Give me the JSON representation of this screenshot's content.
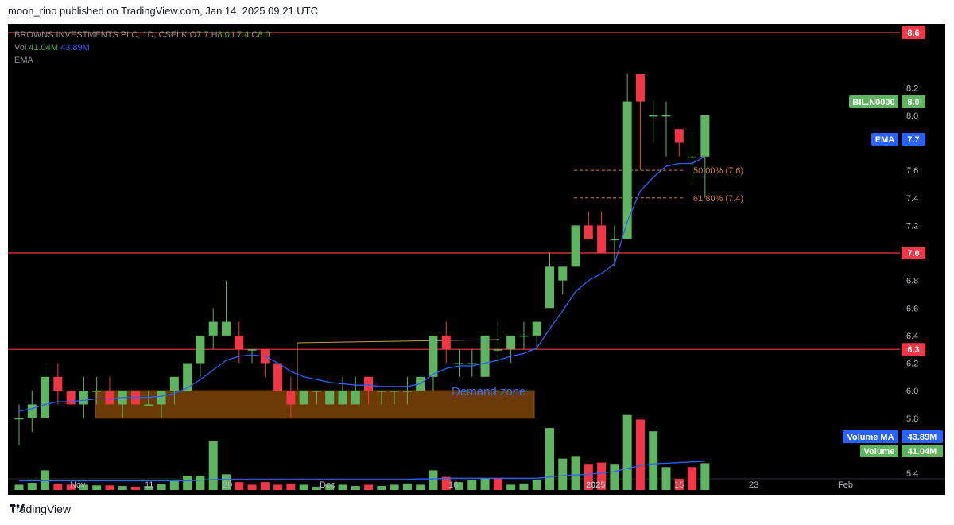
{
  "header": {
    "text": "moon_rino published on TradingView.com, Jan 14, 2025 09:21 UTC"
  },
  "footer": {
    "brand": "TradingView"
  },
  "legend": {
    "symbol": "BROWNS INVESTMENTS PLC, 1D, CSELK",
    "o_label": "O",
    "o": "7.7",
    "h_label": "H",
    "h": "8.0",
    "l_label": "L",
    "l": "7.4",
    "c_label": "C",
    "c": "8.0",
    "vol_label": "Vol",
    "vol": "41.04M",
    "vol_ma": "43.89M",
    "ema_label": "EMA"
  },
  "colors": {
    "up": "#5fb45f",
    "down": "#f23645",
    "ema": "#2962ff",
    "hline": "#f23645",
    "fib": "#d17b2f",
    "zone": "#6b3a05",
    "zone_text": "#3a6df0",
    "bg": "#000000"
  },
  "annotations": {
    "demand_zone": "Demand zone",
    "fib50": "50.00% (7.6)",
    "fib618": "61.80% (7.4)"
  },
  "badges": {
    "r86": "8.6",
    "r70": "7.0",
    "r63": "6.3",
    "symbol_name": "BIL.N0000",
    "symbol_price": "8.0",
    "ema_name": "EMA",
    "ema_val": "7.7",
    "vma_name": "Volume MA",
    "vma_val": "43.89M",
    "vol_name": "Volume",
    "vol_val": "41.04M"
  },
  "chart_data": {
    "type": "candlestick",
    "ylim": [
      5.4,
      8.6
    ],
    "y_ticks": [
      "8.2",
      "8.0",
      "7.8",
      "7.6",
      "7.4",
      "7.2",
      "7.0",
      "6.8",
      "6.6",
      "6.4",
      "6.2",
      "6.0",
      "5.8",
      "5.4"
    ],
    "x_ticks": [
      "Nov",
      "11",
      "20",
      "Dec",
      "16",
      "2025",
      "15",
      "23",
      "Feb"
    ],
    "horizontal_lines": [
      8.6,
      7.0,
      6.3
    ],
    "fib_levels": [
      {
        "label": "50.00% (7.6)",
        "value": 7.6
      },
      {
        "label": "61.80% (7.4)",
        "value": 7.4
      }
    ],
    "demand_zone": {
      "low": 5.8,
      "high": 6.0
    },
    "candles": [
      {
        "o": 5.8,
        "h": 5.9,
        "l": 5.6,
        "c": 5.8
      },
      {
        "o": 5.8,
        "h": 6.0,
        "l": 5.7,
        "c": 5.9
      },
      {
        "o": 5.8,
        "h": 6.2,
        "l": 5.8,
        "c": 6.1
      },
      {
        "o": 6.1,
        "h": 6.2,
        "l": 5.9,
        "c": 6.0
      },
      {
        "o": 6.0,
        "h": 6.0,
        "l": 5.9,
        "c": 5.9
      },
      {
        "o": 5.9,
        "h": 6.1,
        "l": 5.8,
        "c": 6.0
      },
      {
        "o": 6.0,
        "h": 6.1,
        "l": 5.9,
        "c": 6.0
      },
      {
        "o": 6.0,
        "h": 6.1,
        "l": 5.9,
        "c": 5.9
      },
      {
        "o": 5.9,
        "h": 6.0,
        "l": 5.8,
        "c": 6.0
      },
      {
        "o": 6.0,
        "h": 6.0,
        "l": 5.9,
        "c": 5.9
      },
      {
        "o": 5.9,
        "h": 6.0,
        "l": 5.9,
        "c": 5.9
      },
      {
        "o": 5.9,
        "h": 6.0,
        "l": 5.8,
        "c": 6.0
      },
      {
        "o": 6.0,
        "h": 6.1,
        "l": 5.9,
        "c": 6.1
      },
      {
        "o": 6.0,
        "h": 6.2,
        "l": 6.0,
        "c": 6.2
      },
      {
        "o": 6.2,
        "h": 6.4,
        "l": 6.1,
        "c": 6.4
      },
      {
        "o": 6.4,
        "h": 6.6,
        "l": 6.3,
        "c": 6.5
      },
      {
        "o": 6.4,
        "h": 6.8,
        "l": 6.4,
        "c": 6.5
      },
      {
        "o": 6.4,
        "h": 6.5,
        "l": 6.2,
        "c": 6.3
      },
      {
        "o": 6.3,
        "h": 6.3,
        "l": 6.2,
        "c": 6.3
      },
      {
        "o": 6.3,
        "h": 6.3,
        "l": 6.1,
        "c": 6.2
      },
      {
        "o": 6.2,
        "h": 6.2,
        "l": 6.0,
        "c": 6.0
      },
      {
        "o": 6.0,
        "h": 6.1,
        "l": 5.8,
        "c": 5.9
      },
      {
        "o": 5.9,
        "h": 6.0,
        "l": 5.9,
        "c": 6.0
      },
      {
        "o": 6.0,
        "h": 6.0,
        "l": 5.9,
        "c": 6.0
      },
      {
        "o": 5.9,
        "h": 6.0,
        "l": 5.9,
        "c": 6.0
      },
      {
        "o": 5.9,
        "h": 6.1,
        "l": 5.9,
        "c": 6.0
      },
      {
        "o": 5.9,
        "h": 6.1,
        "l": 5.9,
        "c": 6.0
      },
      {
        "o": 6.1,
        "h": 6.1,
        "l": 5.9,
        "c": 6.0
      },
      {
        "o": 6.0,
        "h": 6.0,
        "l": 5.9,
        "c": 6.0
      },
      {
        "o": 6.0,
        "h": 6.0,
        "l": 5.9,
        "c": 6.0
      },
      {
        "o": 6.0,
        "h": 6.1,
        "l": 5.9,
        "c": 6.0
      },
      {
        "o": 6.0,
        "h": 6.1,
        "l": 6.0,
        "c": 6.1
      },
      {
        "o": 6.1,
        "h": 6.4,
        "l": 6.0,
        "c": 6.4
      },
      {
        "o": 6.4,
        "h": 6.5,
        "l": 6.2,
        "c": 6.3
      },
      {
        "o": 6.2,
        "h": 6.3,
        "l": 6.1,
        "c": 6.2
      },
      {
        "o": 6.2,
        "h": 6.3,
        "l": 6.1,
        "c": 6.2
      },
      {
        "o": 6.1,
        "h": 6.4,
        "l": 6.1,
        "c": 6.4
      },
      {
        "o": 6.3,
        "h": 6.5,
        "l": 6.2,
        "c": 6.3
      },
      {
        "o": 6.3,
        "h": 6.4,
        "l": 6.2,
        "c": 6.4
      },
      {
        "o": 6.4,
        "h": 6.5,
        "l": 6.3,
        "c": 6.4
      },
      {
        "o": 6.4,
        "h": 6.5,
        "l": 6.3,
        "c": 6.5
      },
      {
        "o": 6.6,
        "h": 7.0,
        "l": 6.6,
        "c": 6.9
      },
      {
        "o": 6.8,
        "h": 6.9,
        "l": 6.7,
        "c": 6.9
      },
      {
        "o": 6.9,
        "h": 7.2,
        "l": 6.9,
        "c": 7.2
      },
      {
        "o": 7.2,
        "h": 7.3,
        "l": 7.1,
        "c": 7.1
      },
      {
        "o": 7.2,
        "h": 7.3,
        "l": 7.0,
        "c": 7.0
      },
      {
        "o": 7.1,
        "h": 7.2,
        "l": 6.9,
        "c": 7.1
      },
      {
        "o": 7.1,
        "h": 8.3,
        "l": 7.1,
        "c": 8.1
      },
      {
        "o": 8.3,
        "h": 8.3,
        "l": 7.6,
        "c": 8.1
      },
      {
        "o": 8.0,
        "h": 8.1,
        "l": 7.8,
        "c": 8.0
      },
      {
        "o": 8.0,
        "h": 8.1,
        "l": 7.7,
        "c": 8.0
      },
      {
        "o": 7.9,
        "h": 7.9,
        "l": 7.7,
        "c": 7.8
      },
      {
        "o": 7.7,
        "h": 7.9,
        "l": 7.5,
        "c": 7.7
      },
      {
        "o": 7.7,
        "h": 8.0,
        "l": 7.4,
        "c": 8.0
      }
    ],
    "ema": [
      5.85,
      5.87,
      5.9,
      5.92,
      5.92,
      5.93,
      5.94,
      5.94,
      5.95,
      5.95,
      5.95,
      5.96,
      5.98,
      6.02,
      6.08,
      6.15,
      6.22,
      6.25,
      6.26,
      6.25,
      6.2,
      6.14,
      6.1,
      6.08,
      6.06,
      6.05,
      6.04,
      6.04,
      6.03,
      6.03,
      6.03,
      6.05,
      6.12,
      6.16,
      6.18,
      6.18,
      6.2,
      6.22,
      6.25,
      6.27,
      6.31,
      6.45,
      6.58,
      6.72,
      6.8,
      6.85,
      6.92,
      7.23,
      7.45,
      7.55,
      7.63,
      7.65,
      7.65,
      7.7
    ],
    "volume": [
      {
        "v": 8,
        "up": true
      },
      {
        "v": 11,
        "up": true
      },
      {
        "v": 30,
        "up": true
      },
      {
        "v": 10,
        "up": false
      },
      {
        "v": 8,
        "up": false
      },
      {
        "v": 8,
        "up": true
      },
      {
        "v": 7,
        "up": true
      },
      {
        "v": 7,
        "up": false
      },
      {
        "v": 6,
        "up": true
      },
      {
        "v": 5,
        "up": false
      },
      {
        "v": 6,
        "up": true
      },
      {
        "v": 9,
        "up": true
      },
      {
        "v": 15,
        "up": true
      },
      {
        "v": 22,
        "up": true
      },
      {
        "v": 22,
        "up": true
      },
      {
        "v": 75,
        "up": true
      },
      {
        "v": 24,
        "up": true
      },
      {
        "v": 12,
        "up": false
      },
      {
        "v": 8,
        "up": false
      },
      {
        "v": 12,
        "up": false
      },
      {
        "v": 8,
        "up": false
      },
      {
        "v": 10,
        "up": false
      },
      {
        "v": 8,
        "up": true
      },
      {
        "v": 5,
        "up": true
      },
      {
        "v": 8,
        "up": true
      },
      {
        "v": 8,
        "up": true
      },
      {
        "v": 6,
        "up": true
      },
      {
        "v": 8,
        "up": false
      },
      {
        "v": 6,
        "up": true
      },
      {
        "v": 8,
        "up": true
      },
      {
        "v": 10,
        "up": true
      },
      {
        "v": 8,
        "up": true
      },
      {
        "v": 30,
        "up": true
      },
      {
        "v": 20,
        "up": false
      },
      {
        "v": 12,
        "up": true
      },
      {
        "v": 15,
        "up": true
      },
      {
        "v": 18,
        "up": true
      },
      {
        "v": 18,
        "up": false
      },
      {
        "v": 8,
        "up": true
      },
      {
        "v": 10,
        "up": true
      },
      {
        "v": 15,
        "up": true
      },
      {
        "v": 95,
        "up": true
      },
      {
        "v": 48,
        "up": true
      },
      {
        "v": 52,
        "up": true
      },
      {
        "v": 40,
        "up": false
      },
      {
        "v": 42,
        "up": false
      },
      {
        "v": 40,
        "up": true
      },
      {
        "v": 115,
        "up": true
      },
      {
        "v": 108,
        "up": false
      },
      {
        "v": 90,
        "up": true
      },
      {
        "v": 35,
        "up": true
      },
      {
        "v": 17,
        "up": false
      },
      {
        "v": 35,
        "up": false
      },
      {
        "v": 41,
        "up": true
      }
    ],
    "volume_ma": [
      14,
      14,
      14,
      14,
      14,
      14,
      14,
      14,
      14,
      14,
      14,
      14,
      14,
      14,
      15,
      16,
      16,
      16,
      16,
      16,
      16,
      16,
      16,
      16,
      16,
      16,
      16,
      16,
      16,
      16,
      16,
      17,
      17,
      18,
      18,
      18,
      18,
      18,
      18,
      18,
      18,
      20,
      22,
      23,
      24,
      26,
      28,
      33,
      37,
      40,
      41,
      42,
      43,
      44
    ]
  }
}
